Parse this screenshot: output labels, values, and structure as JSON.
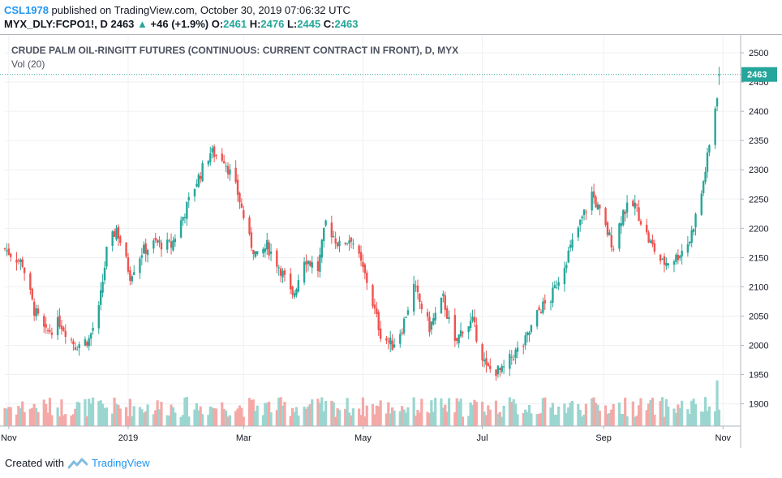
{
  "header": {
    "username": "CSL1978",
    "published_text": "published on TradingView.com, October 30, 2019 07:06:32 UTC",
    "symbol": "MYX_DLY:FCPO1!, D",
    "last": "2463",
    "arrow": "▲",
    "change": "+46 (+1.9%)",
    "o_label": "O:",
    "o_value": "2461",
    "h_label": "H:",
    "h_value": "2476",
    "l_label": "L:",
    "l_value": "2445",
    "c_label": "C:",
    "c_value": "2463"
  },
  "legend": {
    "title": "CRUDE PALM OIL-RINGITT FUTURES (CONTINUOUS: CURRENT CONTRACT IN FRONT), D, MYX",
    "volume": "Vol (20)"
  },
  "footer": {
    "created_with": "Created with",
    "brand": "TradingView"
  },
  "colors": {
    "up": "#26a69a",
    "down": "#ef5350",
    "vol_up": "#9ad6cf",
    "vol_down": "#f4a9a7",
    "last_price_bg": "#26a69a"
  },
  "chart_data": {
    "type": "candlestick",
    "title": "CRUDE PALM OIL-RINGITT FUTURES (CONTINUOUS: CURRENT CONTRACT IN FRONT), D, MYX",
    "y_ticks": [
      1900,
      1950,
      2000,
      2050,
      2100,
      2150,
      2200,
      2250,
      2300,
      2350,
      2400,
      2450,
      2500
    ],
    "ylim": [
      1862,
      2532
    ],
    "x_ticks": [
      {
        "label": "Nov",
        "date": "2018-11-01"
      },
      {
        "label": "2019",
        "date": "2019-01-01"
      },
      {
        "label": "Mar",
        "date": "2019-03-01"
      },
      {
        "label": "May",
        "date": "2019-05-01"
      },
      {
        "label": "Jul",
        "date": "2019-07-01"
      },
      {
        "label": "Sep",
        "date": "2019-09-01"
      },
      {
        "label": "Nov",
        "date": "2019-11-01"
      }
    ],
    "xlim": [
      "2018-10-30",
      "2019-11-10"
    ],
    "last_price": 2463,
    "anchors": [
      {
        "date": "2018-10-30",
        "close": 2165
      },
      {
        "date": "2018-11-08",
        "close": 2140
      },
      {
        "date": "2018-11-14",
        "close": 2060
      },
      {
        "date": "2018-11-20",
        "close": 2020
      },
      {
        "date": "2018-11-27",
        "close": 2040
      },
      {
        "date": "2018-12-05",
        "close": 2000
      },
      {
        "date": "2018-12-12",
        "close": 2010
      },
      {
        "date": "2018-12-17",
        "close": 2060
      },
      {
        "date": "2018-12-21",
        "close": 2160
      },
      {
        "date": "2018-12-26",
        "close": 2200
      },
      {
        "date": "2019-01-02",
        "close": 2120
      },
      {
        "date": "2019-01-08",
        "close": 2160
      },
      {
        "date": "2019-01-15",
        "close": 2175
      },
      {
        "date": "2019-01-23",
        "close": 2170
      },
      {
        "date": "2019-01-29",
        "close": 2220
      },
      {
        "date": "2019-02-05",
        "close": 2280
      },
      {
        "date": "2019-02-12",
        "close": 2330
      },
      {
        "date": "2019-02-19",
        "close": 2320
      },
      {
        "date": "2019-02-26",
        "close": 2260
      },
      {
        "date": "2019-03-04",
        "close": 2180
      },
      {
        "date": "2019-03-08",
        "close": 2150
      },
      {
        "date": "2019-03-13",
        "close": 2170
      },
      {
        "date": "2019-03-20",
        "close": 2130
      },
      {
        "date": "2019-03-26",
        "close": 2080
      },
      {
        "date": "2019-04-01",
        "close": 2150
      },
      {
        "date": "2019-04-08",
        "close": 2130
      },
      {
        "date": "2019-04-12",
        "close": 2210
      },
      {
        "date": "2019-04-19",
        "close": 2170
      },
      {
        "date": "2019-04-25",
        "close": 2185
      },
      {
        "date": "2019-05-03",
        "close": 2110
      },
      {
        "date": "2019-05-10",
        "close": 2020
      },
      {
        "date": "2019-05-16",
        "close": 2000
      },
      {
        "date": "2019-05-21",
        "close": 2030
      },
      {
        "date": "2019-05-27",
        "close": 2100
      },
      {
        "date": "2019-06-04",
        "close": 2030
      },
      {
        "date": "2019-06-11",
        "close": 2080
      },
      {
        "date": "2019-06-17",
        "close": 2000
      },
      {
        "date": "2019-06-21",
        "close": 2030
      },
      {
        "date": "2019-06-26",
        "close": 2040
      },
      {
        "date": "2019-07-03",
        "close": 1960
      },
      {
        "date": "2019-07-11",
        "close": 1955
      },
      {
        "date": "2019-07-17",
        "close": 1985
      },
      {
        "date": "2019-07-22",
        "close": 2000
      },
      {
        "date": "2019-07-30",
        "close": 2060
      },
      {
        "date": "2019-08-05",
        "close": 2080
      },
      {
        "date": "2019-08-12",
        "close": 2140
      },
      {
        "date": "2019-08-19",
        "close": 2200
      },
      {
        "date": "2019-08-26",
        "close": 2260
      },
      {
        "date": "2019-09-02",
        "close": 2200
      },
      {
        "date": "2019-09-06",
        "close": 2170
      },
      {
        "date": "2019-09-11",
        "close": 2230
      },
      {
        "date": "2019-09-17",
        "close": 2240
      },
      {
        "date": "2019-09-24",
        "close": 2180
      },
      {
        "date": "2019-10-01",
        "close": 2140
      },
      {
        "date": "2019-10-08",
        "close": 2150
      },
      {
        "date": "2019-10-15",
        "close": 2180
      },
      {
        "date": "2019-10-21",
        "close": 2260
      },
      {
        "date": "2019-10-25",
        "close": 2340
      },
      {
        "date": "2019-10-29",
        "close": 2430
      },
      {
        "date": "2019-10-30",
        "close": 2463
      }
    ],
    "volume_note": "Vol (20)"
  }
}
